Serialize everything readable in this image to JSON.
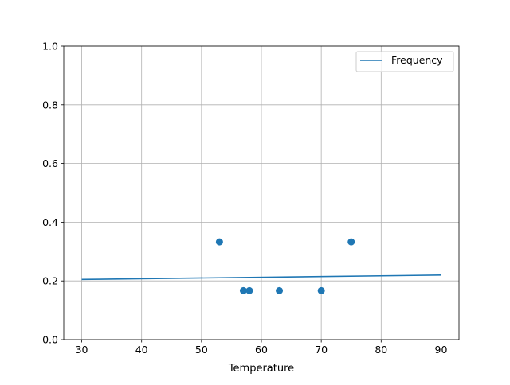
{
  "chart_data": {
    "type": "scatter",
    "title": "",
    "xlabel": "Temperature",
    "ylabel": "",
    "xlim": [
      27,
      93
    ],
    "ylim": [
      0,
      1.0
    ],
    "grid": true,
    "legend_position": "top-right",
    "x_ticks": [
      "30",
      "40",
      "50",
      "60",
      "70",
      "80",
      "90"
    ],
    "y_ticks": [
      "0.0",
      "0.2",
      "0.4",
      "0.6",
      "0.8",
      "1.0"
    ],
    "scatter": {
      "x": [
        53,
        57,
        58,
        63,
        70,
        75
      ],
      "y": [
        0.333,
        0.167,
        0.167,
        0.167,
        0.167,
        0.333
      ],
      "color": "#1f77b4"
    },
    "series": [
      {
        "name": "Frequency",
        "type": "line",
        "x": [
          30,
          90
        ],
        "y": [
          0.205,
          0.22
        ],
        "color": "#1f77b4"
      }
    ]
  }
}
